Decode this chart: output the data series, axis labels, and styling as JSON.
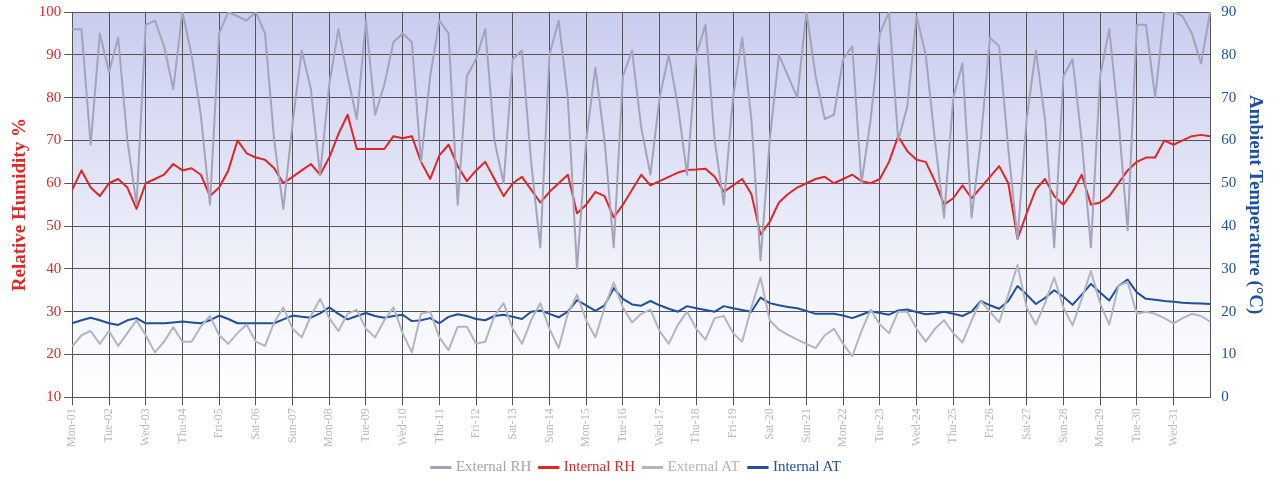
{
  "chart_data": {
    "type": "line",
    "ylabel": "Relative Humidity %",
    "y2label": "Ambient Temperature (°C)",
    "categories": [
      "Mon-01",
      null,
      null,
      null,
      "Tue-02",
      null,
      null,
      null,
      "Wed-03",
      null,
      null,
      null,
      "Thu-04",
      null,
      null,
      null,
      "Fri-05",
      null,
      null,
      null,
      "Sat-06",
      null,
      null,
      null,
      "Sun-07",
      null,
      null,
      null,
      "Mon-08",
      null,
      null,
      null,
      "Tue-09",
      null,
      null,
      null,
      "Wed-10",
      null,
      null,
      null,
      "Thu-11",
      null,
      null,
      null,
      "Fri-12",
      null,
      null,
      null,
      "Sat-13",
      null,
      null,
      null,
      "Sun-14",
      null,
      null,
      null,
      "Mon-15",
      null,
      null,
      null,
      "Tue-16",
      null,
      null,
      null,
      "Wed-17",
      null,
      null,
      null,
      "Thu-18",
      null,
      null,
      null,
      "Fri-19",
      null,
      null,
      null,
      "Sat-20",
      null,
      null,
      null,
      "Sun-21",
      null,
      null,
      null,
      "Mon-22",
      null,
      null,
      null,
      "Tue-23",
      null,
      null,
      null,
      "Wed-24",
      null,
      null,
      null,
      "Thu-25",
      null,
      null,
      null,
      "Fri-26",
      null,
      null,
      null,
      "Sat-27",
      null,
      null,
      null,
      "Sun-28",
      null,
      null,
      null,
      "Mon-29",
      null,
      null,
      null,
      "Tue-30",
      null,
      null,
      null,
      "Wed-31",
      null,
      null,
      null,
      null
    ],
    "ylim": [
      10,
      100
    ],
    "yticks": [
      10,
      20,
      30,
      40,
      50,
      60,
      70,
      80,
      90,
      100
    ],
    "y2lim": [
      0,
      90
    ],
    "y2ticks": [
      0,
      10,
      20,
      30,
      40,
      50,
      60,
      70,
      80,
      90
    ],
    "grid": true,
    "legend": "bottom",
    "marker": "none",
    "line_style": "solid",
    "series": [
      {
        "name": "External RH",
        "color": "#a3a3bb",
        "values": [
          96,
          96,
          69,
          95,
          86,
          94,
          70,
          55,
          97,
          98,
          92,
          82,
          100,
          90,
          76,
          55,
          95,
          100,
          99,
          98,
          100,
          95,
          70,
          54,
          74,
          91,
          82,
          62,
          83,
          96,
          85,
          75,
          98,
          76,
          83,
          93,
          95,
          93,
          65,
          85,
          98,
          95,
          55,
          85,
          89,
          96,
          70,
          60,
          89,
          91,
          65,
          45,
          90,
          98,
          80,
          40,
          70,
          87,
          70,
          45,
          85,
          91,
          73,
          62,
          80,
          90,
          78,
          62,
          90,
          97,
          70,
          55,
          80,
          94,
          75,
          42,
          70,
          90,
          85,
          80,
          100,
          85,
          75,
          76,
          89,
          92,
          60,
          75,
          95,
          100,
          70,
          78,
          99,
          90,
          70,
          52,
          80,
          88,
          52,
          70,
          94,
          92,
          68,
          47,
          75,
          91,
          75,
          45,
          85,
          89,
          70,
          45,
          85,
          96,
          75,
          49,
          97,
          97,
          80,
          100,
          100,
          99,
          95,
          88,
          100
        ]
      },
      {
        "name": "Internal RH",
        "color": "#e02626",
        "values": [
          58.5,
          63,
          59,
          57,
          60,
          61,
          59,
          54,
          60,
          61,
          62,
          64.5,
          63,
          63.5,
          62,
          57,
          59,
          63,
          70,
          67,
          66,
          65.5,
          63.5,
          60,
          61.5,
          63,
          64.5,
          62,
          66,
          71.5,
          76,
          68,
          68,
          68,
          68,
          71,
          70.5,
          71,
          65,
          61,
          66.5,
          69,
          64,
          60.5,
          63,
          65,
          61,
          57,
          60,
          61.5,
          58.5,
          55.5,
          58,
          60,
          62,
          53,
          55,
          58,
          57,
          52,
          55,
          58.5,
          62,
          59.5,
          60.5,
          61.5,
          62.5,
          63.1,
          63.2,
          63.4,
          61.5,
          58,
          59.5,
          61,
          57.5,
          48,
          51,
          55.5,
          57.5,
          59,
          60,
          61,
          61.5,
          60,
          61,
          62,
          60.5,
          60,
          61,
          65,
          71,
          67.5,
          65.5,
          65,
          60.5,
          55,
          56.5,
          59.5,
          56.5,
          59,
          61.5,
          64,
          60,
          47,
          53,
          58.5,
          61,
          57,
          55,
          58,
          62,
          55,
          55.5,
          57,
          60,
          63,
          65,
          66,
          66,
          70,
          69,
          70,
          71,
          71.3,
          71
        ]
      },
      {
        "name": "External AT",
        "color": "#b3b3c5",
        "axis": "y2",
        "values": [
          11.9,
          14.5,
          15.5,
          12.5,
          15.5,
          12,
          15,
          18,
          14.5,
          10.5,
          13,
          16.4,
          13,
          13,
          16.5,
          19,
          14.5,
          12.5,
          15,
          17,
          13,
          12,
          17.5,
          21,
          16,
          14,
          19,
          23,
          18.5,
          15.5,
          19.5,
          20.5,
          16,
          14,
          18,
          21,
          15,
          10.5,
          19.5,
          20,
          14,
          11,
          16.5,
          16.5,
          12.5,
          13,
          19,
          22,
          16,
          12.5,
          18,
          22,
          16,
          11.5,
          19.5,
          24,
          18,
          14,
          21,
          26.8,
          21,
          17.5,
          19.5,
          20.5,
          15.5,
          12.5,
          17,
          20,
          16,
          13.5,
          18.5,
          19,
          15,
          13,
          21,
          28,
          18,
          15.8,
          14.6,
          13.5,
          12.5,
          11.5,
          14.5,
          16,
          12.5,
          9.6,
          15.5,
          20.5,
          17,
          15,
          20,
          20,
          16,
          13,
          16,
          18,
          15,
          12.8,
          18,
          22.5,
          20,
          17.5,
          24,
          30.9,
          21,
          17,
          22,
          28,
          21,
          16.8,
          23,
          29.5,
          22,
          17,
          26,
          27,
          19.5,
          20,
          19.5,
          18.5,
          17.3,
          18.5,
          19.5,
          19,
          17.7
        ]
      },
      {
        "name": "Internal AT",
        "color": "#1f4fa0",
        "axis": "y2",
        "values": [
          17.3,
          18,
          18.6,
          18,
          17.3,
          16.9,
          18,
          18.5,
          17.3,
          17.3,
          17.3,
          17.5,
          17.7,
          17.5,
          17.3,
          18,
          19.1,
          18.3,
          17.3,
          17.3,
          17.3,
          17.3,
          17.3,
          18.2,
          19.1,
          18.8,
          18.6,
          19.6,
          21,
          19.5,
          18.2,
          19,
          19.7,
          19,
          18.6,
          19,
          19.3,
          17.8,
          18,
          18.5,
          17.3,
          18.8,
          19.4,
          19,
          18.3,
          18,
          19,
          19.3,
          18.8,
          18.3,
          20,
          20.3,
          19.5,
          18.7,
          20,
          22.7,
          21.5,
          20.2,
          21.5,
          25.5,
          23,
          21.7,
          21.4,
          22.5,
          21.5,
          20.7,
          20,
          21.3,
          20.8,
          20.4,
          20,
          21.3,
          20.8,
          20.4,
          20,
          23.3,
          22,
          21.5,
          21.1,
          20.8,
          20.2,
          19.5,
          19.5,
          19.5,
          19.1,
          18.5,
          19.3,
          20.1,
          19.7,
          19.3,
          20.3,
          20.5,
          19.9,
          19.4,
          19.6,
          20,
          19.5,
          19,
          20,
          22.5,
          21.5,
          20.7,
          22.5,
          26,
          24,
          21.8,
          23.2,
          25,
          23.5,
          21.6,
          24,
          26.5,
          24.5,
          22.6,
          26,
          27.5,
          24.5,
          23,
          22.8,
          22.5,
          22.3,
          22.1,
          22,
          21.9,
          21.8
        ]
      }
    ]
  }
}
